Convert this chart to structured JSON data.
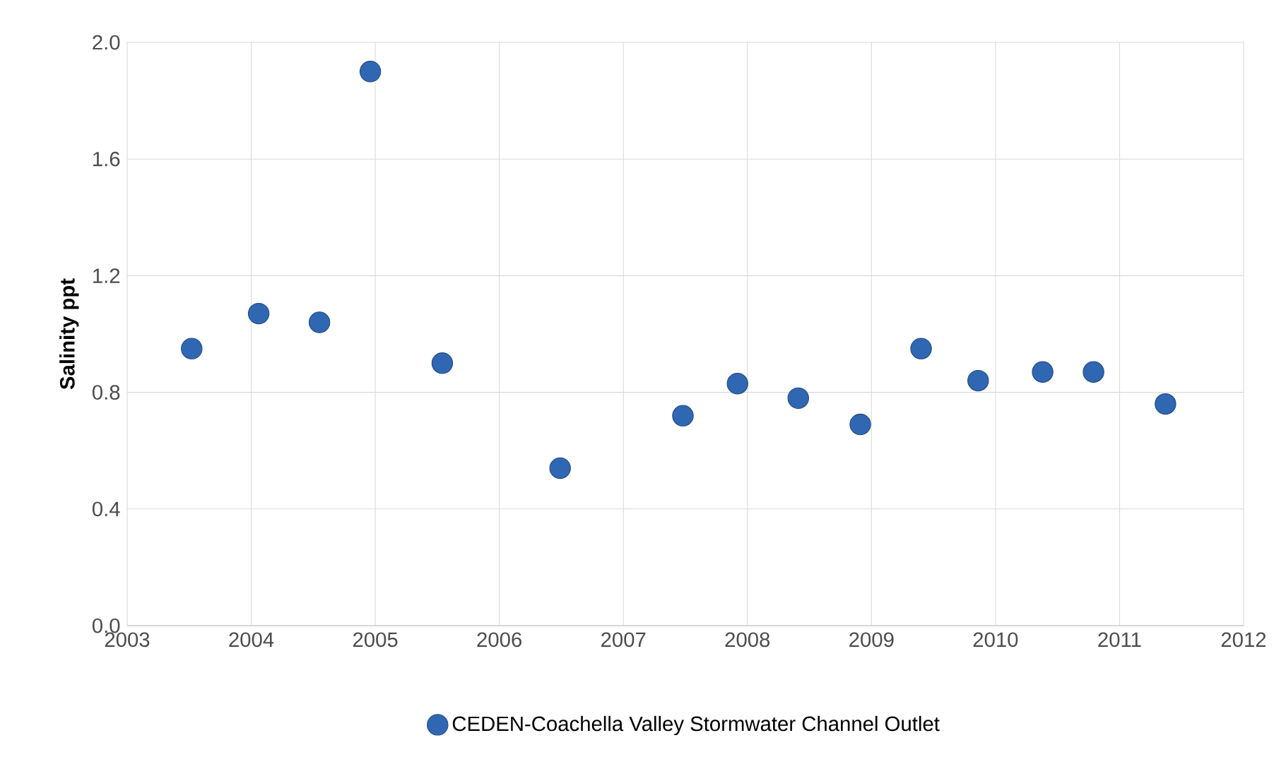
{
  "chart_data": {
    "type": "scatter",
    "ylabel": "Salinity ppt",
    "xlim": [
      2003,
      2012
    ],
    "ylim": [
      0,
      2
    ],
    "xticks": [
      2003,
      2004,
      2005,
      2006,
      2007,
      2008,
      2009,
      2010,
      2011,
      2012
    ],
    "yticks": [
      {
        "value": 0,
        "label": "0.0"
      },
      0.4,
      0.8,
      1.2,
      1.6,
      {
        "value": 2,
        "label": "2.0"
      }
    ],
    "grid": true,
    "legend": "bottom",
    "marker": "circle",
    "series": [
      {
        "name": "CEDEN-Coachella Valley Stormwater Channel Outlet",
        "color": "#2f67b3",
        "x": [
          2003.52,
          2004.06,
          2004.55,
          2004.96,
          2005.54,
          2006.49,
          2007.48,
          2007.92,
          2008.41,
          2008.91,
          2009.4,
          2009.86,
          2010.38,
          2010.79,
          2011.37
        ],
        "values": [
          0.95,
          1.07,
          1.04,
          1.9,
          0.9,
          0.54,
          0.72,
          0.83,
          0.78,
          0.69,
          0.95,
          0.84,
          0.87,
          0.87,
          0.76
        ]
      }
    ]
  }
}
